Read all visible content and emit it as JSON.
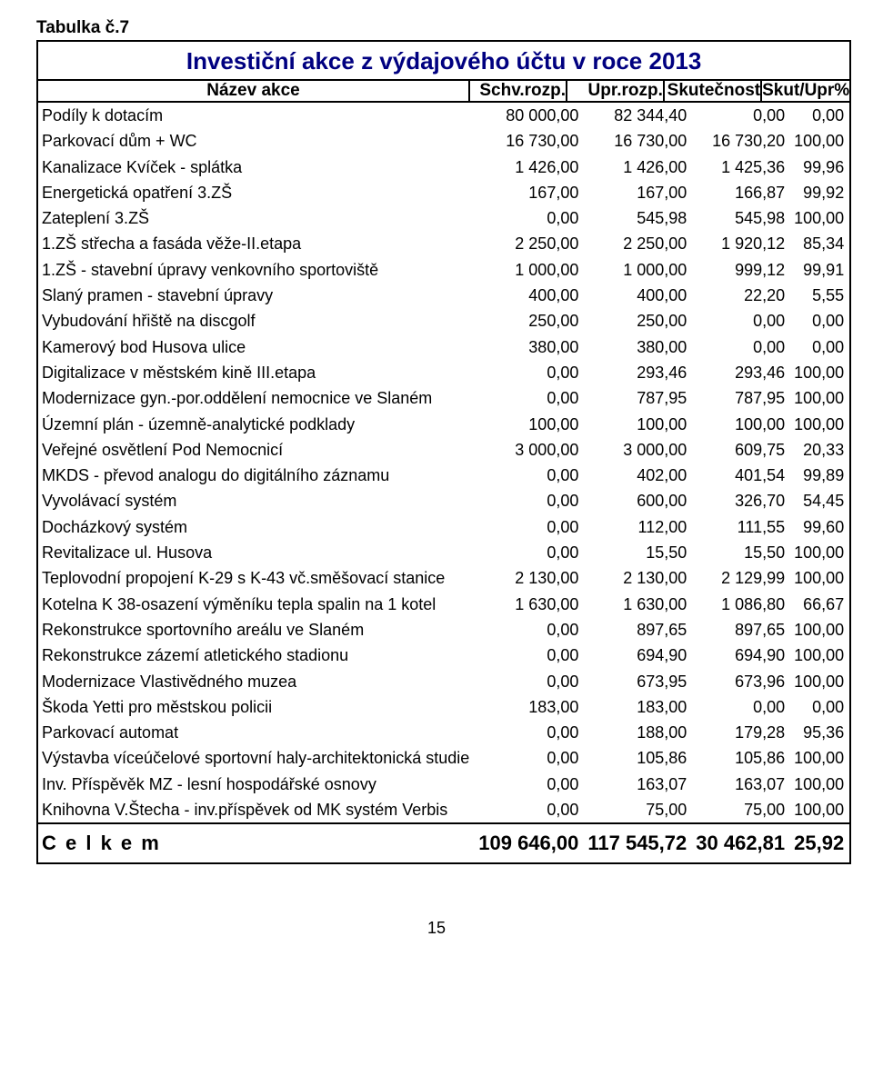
{
  "table_label": "Tabulka č.7",
  "title": "Investiční akce z výdajového účtu v roce 2013",
  "headers": {
    "name": "Název akce",
    "schv": "Schv.rozp.",
    "upr": "Upr.rozp.",
    "skut": "Skutečnost",
    "pct": "Skut/Upr%"
  },
  "col_widths": {
    "name_pct": 54,
    "c1_pct": 12,
    "c2_pct": 12,
    "c3_pct": 12,
    "c4_pct": 10
  },
  "colors": {
    "title_color": "#000080",
    "border_color": "#000000",
    "text_color": "#000000",
    "background": "#ffffff"
  },
  "fonts": {
    "label_pt": 19,
    "title_pt": 26,
    "header_pt": 19,
    "body_pt": 18,
    "total_pt": 22,
    "pagenum_pt": 18
  },
  "rows": [
    {
      "name": "Podíly k dotacím",
      "c1": "80 000,00",
      "c2": "82 344,40",
      "c3": "0,00",
      "c4": "0,00"
    },
    {
      "name": "Parkovací dům + WC",
      "c1": "16 730,00",
      "c2": "16 730,00",
      "c3": "16 730,20",
      "c4": "100,00"
    },
    {
      "name": "Kanalizace Kvíček - splátka",
      "c1": "1 426,00",
      "c2": "1 426,00",
      "c3": "1 425,36",
      "c4": "99,96"
    },
    {
      "name": "Energetická opatření 3.ZŠ",
      "c1": "167,00",
      "c2": "167,00",
      "c3": "166,87",
      "c4": "99,92"
    },
    {
      "name": "Zateplení 3.ZŠ",
      "c1": "0,00",
      "c2": "545,98",
      "c3": "545,98",
      "c4": "100,00"
    },
    {
      "name": "1.ZŠ střecha a fasáda věže-II.etapa",
      "c1": "2 250,00",
      "c2": "2 250,00",
      "c3": "1 920,12",
      "c4": "85,34"
    },
    {
      "name": "1.ZŠ - stavební úpravy venkovního sportoviště",
      "c1": "1 000,00",
      "c2": "1 000,00",
      "c3": "999,12",
      "c4": "99,91"
    },
    {
      "name": "Slaný pramen - stavební úpravy",
      "c1": "400,00",
      "c2": "400,00",
      "c3": "22,20",
      "c4": "5,55"
    },
    {
      "name": "Vybudování hřiště na discgolf",
      "c1": "250,00",
      "c2": "250,00",
      "c3": "0,00",
      "c4": "0,00"
    },
    {
      "name": "Kamerový bod Husova ulice",
      "c1": "380,00",
      "c2": "380,00",
      "c3": "0,00",
      "c4": "0,00"
    },
    {
      "name": "Digitalizace v městském kině III.etapa",
      "c1": "0,00",
      "c2": "293,46",
      "c3": "293,46",
      "c4": "100,00"
    },
    {
      "name": "Modernizace gyn.-por.oddělení nemocnice ve Slaném",
      "c1": "0,00",
      "c2": "787,95",
      "c3": "787,95",
      "c4": "100,00"
    },
    {
      "name": "Územní plán - územně-analytické podklady",
      "c1": "100,00",
      "c2": "100,00",
      "c3": "100,00",
      "c4": "100,00"
    },
    {
      "name": "Veřejné osvětlení Pod Nemocnicí",
      "c1": "3 000,00",
      "c2": "3 000,00",
      "c3": "609,75",
      "c4": "20,33"
    },
    {
      "name": "MKDS - převod analogu do digitálního záznamu",
      "c1": "0,00",
      "c2": "402,00",
      "c3": "401,54",
      "c4": "99,89"
    },
    {
      "name": "Vyvolávací systém",
      "c1": "0,00",
      "c2": "600,00",
      "c3": "326,70",
      "c4": "54,45"
    },
    {
      "name": "Docházkový systém",
      "c1": "0,00",
      "c2": "112,00",
      "c3": "111,55",
      "c4": "99,60"
    },
    {
      "name": "Revitalizace ul. Husova",
      "c1": "0,00",
      "c2": "15,50",
      "c3": "15,50",
      "c4": "100,00"
    },
    {
      "name": "Teplovodní propojení K-29 s K-43 vč.směšovací stanice",
      "c1": "2 130,00",
      "c2": "2 130,00",
      "c3": "2 129,99",
      "c4": "100,00"
    },
    {
      "name": "Kotelna K 38-osazení výměníku tepla spalin na 1 kotel",
      "c1": "1 630,00",
      "c2": "1 630,00",
      "c3": "1 086,80",
      "c4": "66,67"
    },
    {
      "name": "Rekonstrukce sportovního areálu ve Slaném",
      "c1": "0,00",
      "c2": "897,65",
      "c3": "897,65",
      "c4": "100,00"
    },
    {
      "name": "Rekonstrukce zázemí atletického stadionu",
      "c1": "0,00",
      "c2": "694,90",
      "c3": "694,90",
      "c4": "100,00"
    },
    {
      "name": "Modernizace Vlastivědného muzea",
      "c1": "0,00",
      "c2": "673,95",
      "c3": "673,96",
      "c4": "100,00"
    },
    {
      "name": "Škoda Yetti pro městskou policii",
      "c1": "183,00",
      "c2": "183,00",
      "c3": "0,00",
      "c4": "0,00"
    },
    {
      "name": "Parkovací automat",
      "c1": "0,00",
      "c2": "188,00",
      "c3": "179,28",
      "c4": "95,36"
    },
    {
      "name": "Výstavba víceúčelové sportovní haly-architektonická studie",
      "c1": "0,00",
      "c2": "105,86",
      "c3": "105,86",
      "c4": "100,00"
    },
    {
      "name": "Inv. Příspěvěk MZ - lesní hospodářské osnovy",
      "c1": "0,00",
      "c2": "163,07",
      "c3": "163,07",
      "c4": "100,00"
    },
    {
      "name": "Knihovna V.Štecha - inv.příspěvek od MK systém Verbis",
      "c1": "0,00",
      "c2": "75,00",
      "c3": "75,00",
      "c4": "100,00"
    }
  ],
  "total": {
    "label": "C e l k e m",
    "c1": "109 646,00",
    "c2": "117 545,72",
    "c3": "30 462,81",
    "c4": "25,92"
  },
  "page_number": "15"
}
